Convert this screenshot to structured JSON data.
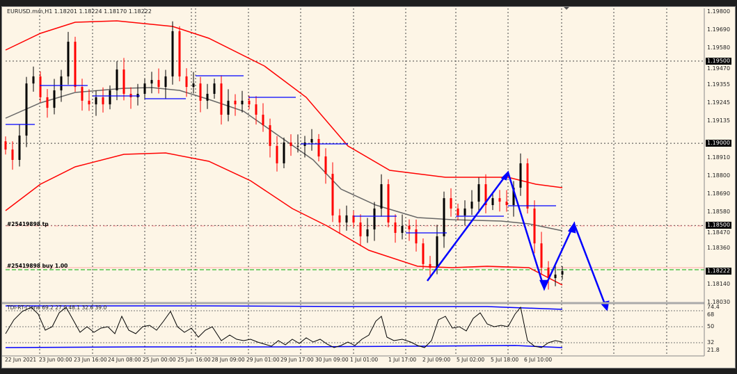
{
  "window": {
    "title": "EURUSD.mm,H1  1.18201 1.18224 1.18170 1.18222"
  },
  "orders": {
    "tp_label": "#25419898 tp",
    "buy_label": "#25419898 buy 1.00"
  },
  "indicator": {
    "label": "TDI-RT-Clone 69.2 27.0 48.1 32.6 39.0",
    "levels": [
      "74.4",
      "68",
      "50",
      "32",
      "21.8"
    ]
  },
  "colors": {
    "background": "#fdf5e6",
    "bull": "#000000",
    "bear": "#ff0000",
    "bands": "#ff0000",
    "middle": "#666666",
    "drawings": "#0000ff",
    "buy_line": "#00aa00",
    "tp_line": "#ff9999"
  },
  "chart_data": {
    "type": "candlestick",
    "symbol": "EURUSD.mm",
    "timeframe": "H1",
    "ohlc_last": {
      "open": 1.18201,
      "high": 1.18224,
      "low": 1.1817,
      "close": 1.18222
    },
    "ylim": [
      1.18,
      1.1983
    ],
    "grid": true,
    "price_ticks": [
      "1.19800",
      "1.19690",
      "1.19580",
      "1.19470",
      "1.19355",
      "1.19245",
      "1.19135",
      "1.18910",
      "1.18800",
      "1.18690",
      "1.18580",
      "1.18470",
      "1.18360",
      "1.18140",
      "1.18030"
    ],
    "price_marks": [
      "1.19500",
      "1.19000",
      "1.18500",
      "1.18222"
    ],
    "time_ticks": [
      "22 Jun 2021",
      "23 Jun 00:00",
      "23 Jun 16:00",
      "24 Jun 08:00",
      "25 Jun 00:00",
      "25 Jun 16:00",
      "28 Jun 09:00",
      "29 Jun 01:00",
      "29 Jun 17:00",
      "30 Jun 09:00",
      "1 Jul 01:00",
      "1 Jul 17:00",
      "2 Jul 09:00",
      "5 Jul 02:00",
      "5 Jul 18:00",
      "6 Jul 10:00"
    ],
    "closes": [
      1.18962,
      1.18899,
      1.19047,
      1.19364,
      1.19407,
      1.1928,
      1.19216,
      1.19322,
      1.19407,
      1.19618,
      1.19343,
      1.19259,
      1.19237,
      1.1928,
      1.19237,
      1.19322,
      1.19449,
      1.19301,
      1.1928,
      1.19301,
      1.19364,
      1.19385,
      1.19343,
      1.19407,
      1.19682,
      1.19407,
      1.19343,
      1.19364,
      1.19259,
      1.19301,
      1.19364,
      1.19174,
      1.19259,
      1.19237,
      1.19259,
      1.19237,
      1.19174,
      1.1911,
      1.18984,
      1.18878,
      1.19005,
      1.18984,
      1.18984,
      1.19005,
      1.19026,
      1.1892,
      1.18814,
      1.18561,
      1.18518,
      1.18561,
      1.18518,
      1.18434,
      1.18476,
      1.18603,
      1.18751,
      1.18518,
      1.18455,
      1.18497,
      1.18476,
      1.18391,
      1.18265,
      1.18243,
      1.18434,
      1.18666,
      1.18603,
      1.18561,
      1.18603,
      1.18645,
      1.18751,
      1.18624,
      1.18666,
      1.18645,
      1.18624,
      1.1873,
      1.18878,
      1.18603,
      1.18391,
      1.18243,
      1.1818,
      1.18201,
      1.18222
    ]
  }
}
